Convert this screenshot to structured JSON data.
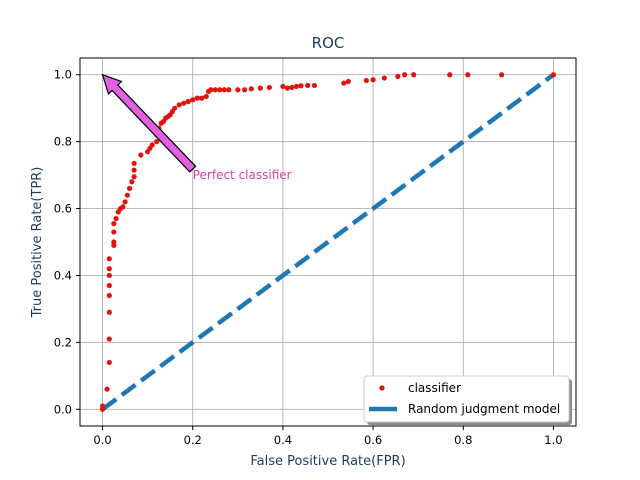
{
  "chart_data": {
    "type": "scatter",
    "title": "ROC",
    "xlabel": "False Positive Rate(FPR)",
    "ylabel": "True Positive Rate(TPR)",
    "xlim": [
      -0.05,
      1.05
    ],
    "ylim": [
      -0.05,
      1.05
    ],
    "xticks": [
      "0.0",
      "0.2",
      "0.4",
      "0.6",
      "0.8",
      "1.0"
    ],
    "yticks": [
      "0.0",
      "0.2",
      "0.4",
      "0.6",
      "0.8",
      "1.0"
    ],
    "grid": true,
    "legend_position": "lower-right",
    "colors": {
      "title": "#1f3b5c",
      "axis_label": "#1f3b5c",
      "points": "#e0140c",
      "random_line": "#1f77b4",
      "arrow_fill": "#e060e0",
      "annotation_text": "#e0409a",
      "grid": "#b0b0b0"
    },
    "series": [
      {
        "name": "classifier",
        "type": "scatter",
        "points": [
          [
            0.0,
            0.0
          ],
          [
            0.0,
            0.01
          ],
          [
            0.01,
            0.06
          ],
          [
            0.015,
            0.14
          ],
          [
            0.015,
            0.21
          ],
          [
            0.015,
            0.29
          ],
          [
            0.015,
            0.34
          ],
          [
            0.015,
            0.37
          ],
          [
            0.015,
            0.4
          ],
          [
            0.015,
            0.42
          ],
          [
            0.015,
            0.45
          ],
          [
            0.025,
            0.49
          ],
          [
            0.025,
            0.5
          ],
          [
            0.025,
            0.53
          ],
          [
            0.025,
            0.555
          ],
          [
            0.03,
            0.57
          ],
          [
            0.035,
            0.59
          ],
          [
            0.04,
            0.6
          ],
          [
            0.045,
            0.605
          ],
          [
            0.05,
            0.62
          ],
          [
            0.055,
            0.64
          ],
          [
            0.06,
            0.66
          ],
          [
            0.065,
            0.68
          ],
          [
            0.07,
            0.695
          ],
          [
            0.07,
            0.715
          ],
          [
            0.07,
            0.735
          ],
          [
            0.085,
            0.76
          ],
          [
            0.1,
            0.77
          ],
          [
            0.105,
            0.78
          ],
          [
            0.11,
            0.79
          ],
          [
            0.12,
            0.8
          ],
          [
            0.12,
            0.82
          ],
          [
            0.125,
            0.84
          ],
          [
            0.13,
            0.855
          ],
          [
            0.135,
            0.86
          ],
          [
            0.14,
            0.87
          ],
          [
            0.145,
            0.875
          ],
          [
            0.15,
            0.88
          ],
          [
            0.155,
            0.89
          ],
          [
            0.16,
            0.9
          ],
          [
            0.17,
            0.91
          ],
          [
            0.18,
            0.915
          ],
          [
            0.19,
            0.92
          ],
          [
            0.2,
            0.925
          ],
          [
            0.21,
            0.93
          ],
          [
            0.22,
            0.93
          ],
          [
            0.23,
            0.935
          ],
          [
            0.235,
            0.95
          ],
          [
            0.24,
            0.955
          ],
          [
            0.25,
            0.955
          ],
          [
            0.26,
            0.955
          ],
          [
            0.27,
            0.955
          ],
          [
            0.28,
            0.955
          ],
          [
            0.3,
            0.955
          ],
          [
            0.315,
            0.955
          ],
          [
            0.33,
            0.958
          ],
          [
            0.35,
            0.96
          ],
          [
            0.37,
            0.962
          ],
          [
            0.4,
            0.965
          ],
          [
            0.41,
            0.96
          ],
          [
            0.42,
            0.962
          ],
          [
            0.43,
            0.965
          ],
          [
            0.44,
            0.967
          ],
          [
            0.455,
            0.968
          ],
          [
            0.47,
            0.968
          ],
          [
            0.535,
            0.975
          ],
          [
            0.545,
            0.98
          ],
          [
            0.585,
            0.983
          ],
          [
            0.6,
            0.985
          ],
          [
            0.625,
            0.99
          ],
          [
            0.655,
            0.995
          ],
          [
            0.67,
            1.0
          ],
          [
            0.69,
            1.0
          ],
          [
            0.77,
            1.0
          ],
          [
            0.81,
            1.0
          ],
          [
            0.885,
            1.0
          ],
          [
            1.0,
            1.0
          ]
        ]
      },
      {
        "name": "Random judgment model",
        "type": "line",
        "x": [
          0.0,
          1.0
        ],
        "y": [
          0.0,
          1.0
        ]
      }
    ],
    "annotations": [
      {
        "text": "Perfect classifier",
        "xy": [
          0.0,
          1.0
        ],
        "xytext": [
          0.2,
          0.7
        ]
      }
    ]
  }
}
